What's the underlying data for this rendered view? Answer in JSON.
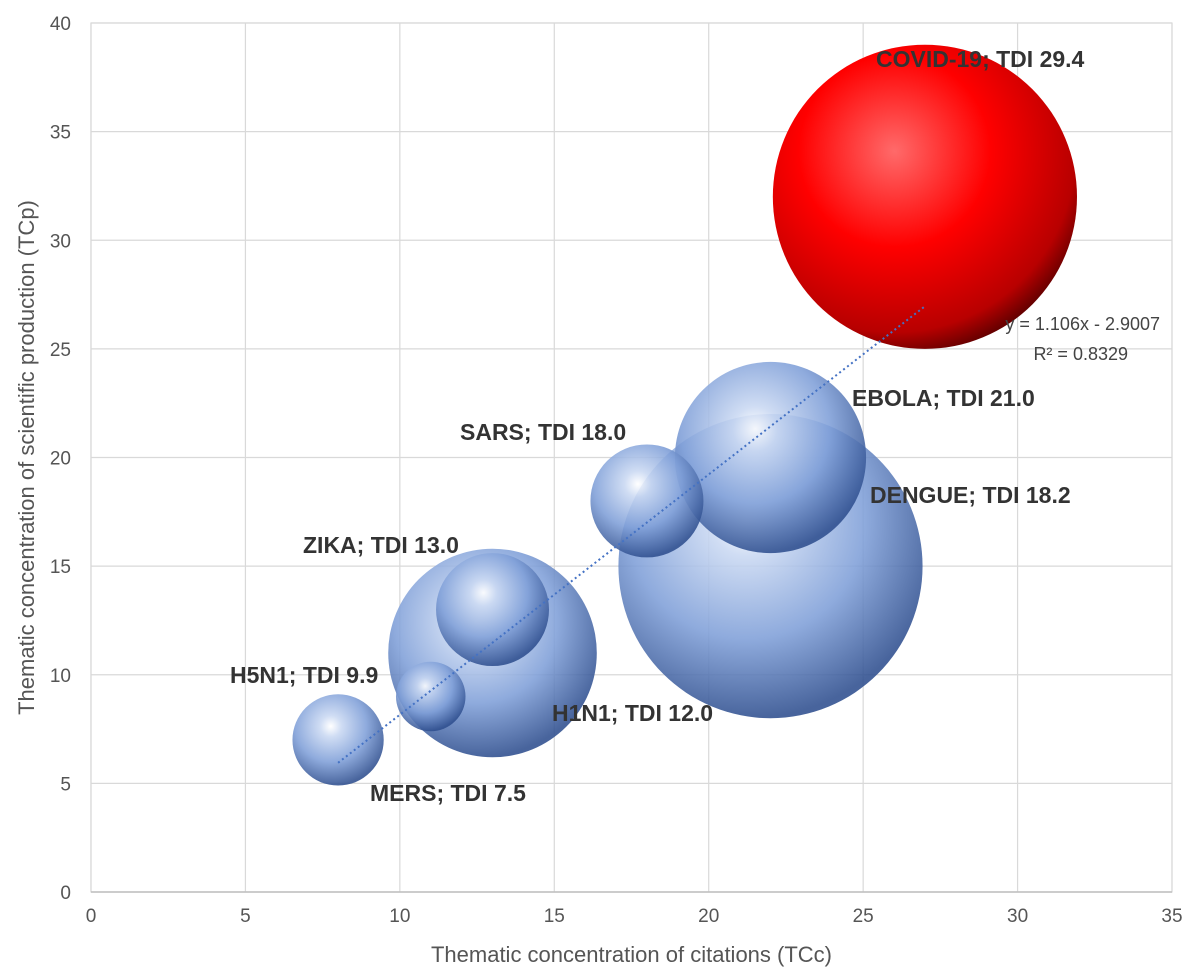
{
  "chart_data": {
    "type": "bubble",
    "xlabel": "Thematic concentration of citations (TCc)",
    "ylabel": "Thematic concentration of scientific production (TCp)",
    "xlim": [
      0,
      35
    ],
    "ylim": [
      0,
      40
    ],
    "xticks": [
      "0",
      "5",
      "10",
      "15",
      "20",
      "25",
      "30",
      "35"
    ],
    "yticks": [
      "0",
      "5",
      "10",
      "15",
      "20",
      "25",
      "30",
      "35",
      "40"
    ],
    "grid": true,
    "points": [
      {
        "label": "MERS; TDI 7.5",
        "x": 8,
        "y": 7,
        "size": 2.1,
        "color": "#7f9fd8"
      },
      {
        "label": "H5N1; TDI 9.9",
        "x": 11,
        "y": 9,
        "size": 1.6,
        "color": "#7f9fd8"
      },
      {
        "label": "H1N1; TDI 12.0",
        "x": 13,
        "y": 11,
        "size": 4.8,
        "color": "#7f9fd8"
      },
      {
        "label": "ZIKA; TDI 13.0",
        "x": 13,
        "y": 13,
        "size": 2.6,
        "color": "#7f9fd8"
      },
      {
        "label": "SARS; TDI 18.0",
        "x": 18,
        "y": 18,
        "size": 2.6,
        "color": "#7f9fd8"
      },
      {
        "label": "DENGUE; TDI 18.2",
        "x": 22,
        "y": 15,
        "size": 7.0,
        "color": "#7f9fd8"
      },
      {
        "label": "EBOLA; TDI 21.0",
        "x": 22,
        "y": 20,
        "size": 4.4,
        "color": "#7f9fd8"
      },
      {
        "label": "COVID-19; TDI 29.4",
        "x": 27,
        "y": 32,
        "size": 7.0,
        "color": "#e00000"
      }
    ],
    "trendline": {
      "slope": 1.106,
      "intercept": -2.9007,
      "x_range": [
        8,
        27
      ],
      "equation": "y = 1.106x - 2.9007",
      "r2": "R² = 0.8329",
      "color": "#4472c4"
    }
  }
}
